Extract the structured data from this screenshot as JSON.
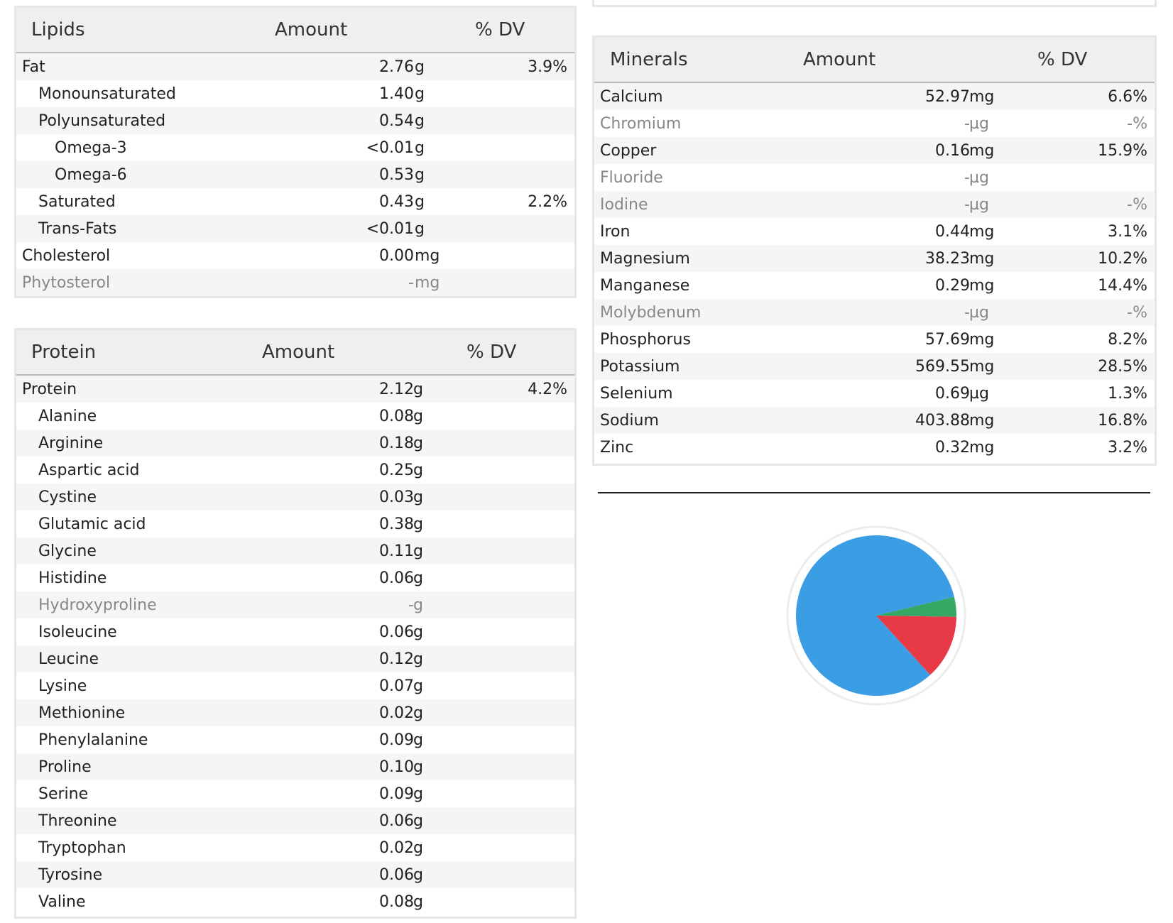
{
  "lipids": {
    "header": {
      "name": "Lipids",
      "amount": "Amount",
      "dv": "% DV"
    },
    "rows": [
      {
        "name": "Fat",
        "value": "2.76",
        "unit": "g",
        "dv": "3.9%",
        "indent": 0,
        "muted": false
      },
      {
        "name": "Monounsaturated",
        "value": "1.40",
        "unit": "g",
        "dv": "",
        "indent": 1,
        "muted": false
      },
      {
        "name": "Polyunsaturated",
        "value": "0.54",
        "unit": "g",
        "dv": "",
        "indent": 1,
        "muted": false
      },
      {
        "name": "Omega-3",
        "value": "<0.01",
        "unit": "g",
        "dv": "",
        "indent": 2,
        "muted": false
      },
      {
        "name": "Omega-6",
        "value": "0.53",
        "unit": "g",
        "dv": "",
        "indent": 2,
        "muted": false
      },
      {
        "name": "Saturated",
        "value": "0.43",
        "unit": "g",
        "dv": "2.2%",
        "indent": 1,
        "muted": false
      },
      {
        "name": "Trans-Fats",
        "value": "<0.01",
        "unit": "g",
        "dv": "",
        "indent": 1,
        "muted": false
      },
      {
        "name": "Cholesterol",
        "value": "0.00",
        "unit": "mg",
        "dv": "",
        "indent": 0,
        "muted": false
      },
      {
        "name": "Phytosterol",
        "value": "-",
        "unit": "mg",
        "dv": "",
        "indent": 0,
        "muted": true
      }
    ]
  },
  "protein": {
    "header": {
      "name": "Protein",
      "amount": "Amount",
      "dv": "% DV"
    },
    "rows": [
      {
        "name": "Protein",
        "value": "2.12",
        "unit": "g",
        "dv": "4.2%",
        "indent": 0,
        "muted": false
      },
      {
        "name": "Alanine",
        "value": "0.08",
        "unit": "g",
        "dv": "",
        "indent": 1,
        "muted": false
      },
      {
        "name": "Arginine",
        "value": "0.18",
        "unit": "g",
        "dv": "",
        "indent": 1,
        "muted": false
      },
      {
        "name": "Aspartic acid",
        "value": "0.25",
        "unit": "g",
        "dv": "",
        "indent": 1,
        "muted": false
      },
      {
        "name": "Cystine",
        "value": "0.03",
        "unit": "g",
        "dv": "",
        "indent": 1,
        "muted": false
      },
      {
        "name": "Glutamic acid",
        "value": "0.38",
        "unit": "g",
        "dv": "",
        "indent": 1,
        "muted": false
      },
      {
        "name": "Glycine",
        "value": "0.11",
        "unit": "g",
        "dv": "",
        "indent": 1,
        "muted": false
      },
      {
        "name": "Histidine",
        "value": "0.06",
        "unit": "g",
        "dv": "",
        "indent": 1,
        "muted": false
      },
      {
        "name": "Hydroxyproline",
        "value": "-",
        "unit": "g",
        "dv": "",
        "indent": 1,
        "muted": true
      },
      {
        "name": "Isoleucine",
        "value": "0.06",
        "unit": "g",
        "dv": "",
        "indent": 1,
        "muted": false
      },
      {
        "name": "Leucine",
        "value": "0.12",
        "unit": "g",
        "dv": "",
        "indent": 1,
        "muted": false
      },
      {
        "name": "Lysine",
        "value": "0.07",
        "unit": "g",
        "dv": "",
        "indent": 1,
        "muted": false
      },
      {
        "name": "Methionine",
        "value": "0.02",
        "unit": "g",
        "dv": "",
        "indent": 1,
        "muted": false
      },
      {
        "name": "Phenylalanine",
        "value": "0.09",
        "unit": "g",
        "dv": "",
        "indent": 1,
        "muted": false
      },
      {
        "name": "Proline",
        "value": "0.10",
        "unit": "g",
        "dv": "",
        "indent": 1,
        "muted": false
      },
      {
        "name": "Serine",
        "value": "0.09",
        "unit": "g",
        "dv": "",
        "indent": 1,
        "muted": false
      },
      {
        "name": "Threonine",
        "value": "0.06",
        "unit": "g",
        "dv": "",
        "indent": 1,
        "muted": false
      },
      {
        "name": "Tryptophan",
        "value": "0.02",
        "unit": "g",
        "dv": "",
        "indent": 1,
        "muted": false
      },
      {
        "name": "Tyrosine",
        "value": "0.06",
        "unit": "g",
        "dv": "",
        "indent": 1,
        "muted": false
      },
      {
        "name": "Valine",
        "value": "0.08",
        "unit": "g",
        "dv": "",
        "indent": 1,
        "muted": false
      }
    ]
  },
  "minerals": {
    "header": {
      "name": "Minerals",
      "amount": "Amount",
      "dv": "% DV"
    },
    "rows": [
      {
        "name": "Calcium",
        "value": "52.97",
        "unit": "mg",
        "dv": "6.6%",
        "indent": 0,
        "muted": false
      },
      {
        "name": "Chromium",
        "value": "-",
        "unit": "µg",
        "dv": "-%",
        "indent": 0,
        "muted": true
      },
      {
        "name": "Copper",
        "value": "0.16",
        "unit": "mg",
        "dv": "15.9%",
        "indent": 0,
        "muted": false
      },
      {
        "name": "Fluoride",
        "value": "-",
        "unit": "µg",
        "dv": "",
        "indent": 0,
        "muted": true
      },
      {
        "name": "Iodine",
        "value": "-",
        "unit": "µg",
        "dv": "-%",
        "indent": 0,
        "muted": true
      },
      {
        "name": "Iron",
        "value": "0.44",
        "unit": "mg",
        "dv": "3.1%",
        "indent": 0,
        "muted": false
      },
      {
        "name": "Magnesium",
        "value": "38.23",
        "unit": "mg",
        "dv": "10.2%",
        "indent": 0,
        "muted": false
      },
      {
        "name": "Manganese",
        "value": "0.29",
        "unit": "mg",
        "dv": "14.4%",
        "indent": 0,
        "muted": false
      },
      {
        "name": "Molybdenum",
        "value": "-",
        "unit": "µg",
        "dv": "-%",
        "indent": 0,
        "muted": true
      },
      {
        "name": "Phosphorus",
        "value": "57.69",
        "unit": "mg",
        "dv": "8.2%",
        "indent": 0,
        "muted": false
      },
      {
        "name": "Potassium",
        "value": "569.55",
        "unit": "mg",
        "dv": "28.5%",
        "indent": 0,
        "muted": false
      },
      {
        "name": "Selenium",
        "value": "0.69",
        "unit": "µg",
        "dv": "1.3%",
        "indent": 0,
        "muted": false
      },
      {
        "name": "Sodium",
        "value": "403.88",
        "unit": "mg",
        "dv": "16.8%",
        "indent": 0,
        "muted": false
      },
      {
        "name": "Zinc",
        "value": "0.32",
        "unit": "mg",
        "dv": "3.2%",
        "indent": 0,
        "muted": false
      }
    ]
  },
  "pie": {
    "slices": [
      {
        "value": 83,
        "color": "#3b9de3"
      },
      {
        "value": 13,
        "color": "#e83a46"
      },
      {
        "value": 4,
        "color": "#36a865"
      }
    ]
  }
}
